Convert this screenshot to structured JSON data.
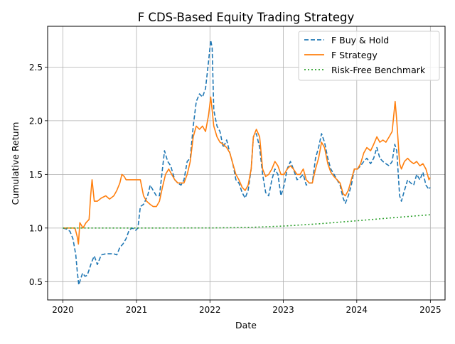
{
  "chart_data": {
    "type": "line",
    "title": "F CDS-Based Equity Trading Strategy",
    "xlabel": "Date",
    "ylabel": "Cumulative Return",
    "xlim": [
      "2019-10-17",
      "2025-03-15"
    ],
    "ylim": [
      0.33,
      2.88
    ],
    "x_ticks": [
      "2020",
      "2021",
      "2022",
      "2023",
      "2024",
      "2025"
    ],
    "y_ticks": [
      "0.5",
      "1.0",
      "1.5",
      "2.0",
      "2.5"
    ],
    "grid": true,
    "legend_position": "top-right",
    "series": [
      {
        "name": "F Buy & Hold",
        "color": "#1f77b4",
        "style": "dashed",
        "points": [
          [
            "2020-01-01",
            1.0
          ],
          [
            "2020-01-20",
            0.99
          ],
          [
            "2020-02-05",
            0.97
          ],
          [
            "2020-02-20",
            0.9
          ],
          [
            "2020-03-05",
            0.75
          ],
          [
            "2020-03-12",
            0.6
          ],
          [
            "2020-03-20",
            0.47
          ],
          [
            "2020-03-28",
            0.52
          ],
          [
            "2020-04-08",
            0.58
          ],
          [
            "2020-04-20",
            0.55
          ],
          [
            "2020-05-01",
            0.56
          ],
          [
            "2020-05-12",
            0.62
          ],
          [
            "2020-05-22",
            0.68
          ],
          [
            "2020-06-05",
            0.74
          ],
          [
            "2020-06-20",
            0.66
          ],
          [
            "2020-07-10",
            0.75
          ],
          [
            "2020-08-01",
            0.76
          ],
          [
            "2020-08-20",
            0.76
          ],
          [
            "2020-09-10",
            0.76
          ],
          [
            "2020-09-25",
            0.75
          ],
          [
            "2020-10-10",
            0.82
          ],
          [
            "2020-10-25",
            0.85
          ],
          [
            "2020-11-10",
            0.9
          ],
          [
            "2020-11-25",
            0.98
          ],
          [
            "2020-12-10",
            1.0
          ],
          [
            "2020-12-28",
            0.98
          ],
          [
            "2021-01-08",
            1.0
          ],
          [
            "2021-01-20",
            1.2
          ],
          [
            "2021-02-05",
            1.22
          ],
          [
            "2021-02-25",
            1.3
          ],
          [
            "2021-03-10",
            1.4
          ],
          [
            "2021-03-25",
            1.35
          ],
          [
            "2021-04-10",
            1.3
          ],
          [
            "2021-04-25",
            1.3
          ],
          [
            "2021-05-10",
            1.55
          ],
          [
            "2021-05-20",
            1.72
          ],
          [
            "2021-06-05",
            1.62
          ],
          [
            "2021-06-20",
            1.58
          ],
          [
            "2021-07-10",
            1.45
          ],
          [
            "2021-07-25",
            1.42
          ],
          [
            "2021-08-10",
            1.4
          ],
          [
            "2021-08-25",
            1.45
          ],
          [
            "2021-09-10",
            1.62
          ],
          [
            "2021-09-25",
            1.65
          ],
          [
            "2021-10-10",
            1.95
          ],
          [
            "2021-10-25",
            2.18
          ],
          [
            "2021-11-10",
            2.25
          ],
          [
            "2021-11-25",
            2.22
          ],
          [
            "2021-12-10",
            2.3
          ],
          [
            "2021-12-25",
            2.55
          ],
          [
            "2022-01-05",
            2.75
          ],
          [
            "2022-01-12",
            2.68
          ],
          [
            "2022-01-20",
            2.1
          ],
          [
            "2022-02-05",
            1.95
          ],
          [
            "2022-02-20",
            1.9
          ],
          [
            "2022-03-08",
            1.75
          ],
          [
            "2022-03-25",
            1.82
          ],
          [
            "2022-04-10",
            1.7
          ],
          [
            "2022-04-25",
            1.6
          ],
          [
            "2022-05-10",
            1.45
          ],
          [
            "2022-05-25",
            1.42
          ],
          [
            "2022-06-10",
            1.33
          ],
          [
            "2022-06-25",
            1.28
          ],
          [
            "2022-07-10",
            1.35
          ],
          [
            "2022-07-25",
            1.55
          ],
          [
            "2022-08-05",
            1.85
          ],
          [
            "2022-08-20",
            1.88
          ],
          [
            "2022-09-05",
            1.75
          ],
          [
            "2022-09-20",
            1.5
          ],
          [
            "2022-10-05",
            1.33
          ],
          [
            "2022-10-20",
            1.3
          ],
          [
            "2022-11-05",
            1.45
          ],
          [
            "2022-11-20",
            1.55
          ],
          [
            "2022-12-05",
            1.5
          ],
          [
            "2022-12-20",
            1.3
          ],
          [
            "2023-01-05",
            1.4
          ],
          [
            "2023-01-20",
            1.55
          ],
          [
            "2023-02-05",
            1.62
          ],
          [
            "2023-02-20",
            1.55
          ],
          [
            "2023-03-10",
            1.45
          ],
          [
            "2023-03-25",
            1.47
          ],
          [
            "2023-04-10",
            1.5
          ],
          [
            "2023-04-25",
            1.4
          ],
          [
            "2023-05-10",
            1.42
          ],
          [
            "2023-05-25",
            1.42
          ],
          [
            "2023-06-10",
            1.65
          ],
          [
            "2023-06-25",
            1.75
          ],
          [
            "2023-07-10",
            1.88
          ],
          [
            "2023-07-25",
            1.8
          ],
          [
            "2023-08-10",
            1.65
          ],
          [
            "2023-08-25",
            1.55
          ],
          [
            "2023-09-10",
            1.5
          ],
          [
            "2023-09-25",
            1.45
          ],
          [
            "2023-10-10",
            1.4
          ],
          [
            "2023-10-25",
            1.28
          ],
          [
            "2023-11-05",
            1.23
          ],
          [
            "2023-11-20",
            1.3
          ],
          [
            "2023-12-05",
            1.4
          ],
          [
            "2023-12-20",
            1.55
          ],
          [
            "2024-01-05",
            1.55
          ],
          [
            "2024-01-20",
            1.58
          ],
          [
            "2024-02-05",
            1.62
          ],
          [
            "2024-02-20",
            1.65
          ],
          [
            "2024-03-10",
            1.6
          ],
          [
            "2024-03-25",
            1.65
          ],
          [
            "2024-04-10",
            1.75
          ],
          [
            "2024-04-25",
            1.65
          ],
          [
            "2024-05-10",
            1.62
          ],
          [
            "2024-05-25",
            1.6
          ],
          [
            "2024-06-10",
            1.58
          ],
          [
            "2024-06-25",
            1.62
          ],
          [
            "2024-07-08",
            1.78
          ],
          [
            "2024-07-18",
            1.72
          ],
          [
            "2024-08-01",
            1.3
          ],
          [
            "2024-08-10",
            1.25
          ],
          [
            "2024-08-25",
            1.35
          ],
          [
            "2024-09-10",
            1.45
          ],
          [
            "2024-09-25",
            1.42
          ],
          [
            "2024-10-10",
            1.4
          ],
          [
            "2024-10-25",
            1.5
          ],
          [
            "2024-11-10",
            1.45
          ],
          [
            "2024-11-25",
            1.52
          ],
          [
            "2024-12-10",
            1.4
          ],
          [
            "2024-12-25",
            1.36
          ],
          [
            "2024-12-31",
            1.38
          ]
        ]
      },
      {
        "name": "F Strategy",
        "color": "#ff7f0e",
        "style": "solid",
        "points": [
          [
            "2020-01-01",
            1.0
          ],
          [
            "2020-02-01",
            1.0
          ],
          [
            "2020-03-01",
            1.0
          ],
          [
            "2020-03-12",
            0.92
          ],
          [
            "2020-03-18",
            0.85
          ],
          [
            "2020-03-25",
            1.05
          ],
          [
            "2020-04-10",
            1.0
          ],
          [
            "2020-04-25",
            1.05
          ],
          [
            "2020-05-10",
            1.08
          ],
          [
            "2020-05-18",
            1.3
          ],
          [
            "2020-05-25",
            1.45
          ],
          [
            "2020-06-05",
            1.25
          ],
          [
            "2020-06-20",
            1.25
          ],
          [
            "2020-07-10",
            1.28
          ],
          [
            "2020-08-01",
            1.3
          ],
          [
            "2020-08-20",
            1.27
          ],
          [
            "2020-09-10",
            1.3
          ],
          [
            "2020-09-25",
            1.35
          ],
          [
            "2020-10-10",
            1.42
          ],
          [
            "2020-10-20",
            1.5
          ],
          [
            "2020-11-01",
            1.48
          ],
          [
            "2020-11-10",
            1.45
          ],
          [
            "2020-12-01",
            1.45
          ],
          [
            "2020-12-20",
            1.45
          ],
          [
            "2021-01-05",
            1.45
          ],
          [
            "2021-01-20",
            1.45
          ],
          [
            "2021-02-05",
            1.3
          ],
          [
            "2021-02-20",
            1.25
          ],
          [
            "2021-03-10",
            1.22
          ],
          [
            "2021-03-25",
            1.2
          ],
          [
            "2021-04-10",
            1.2
          ],
          [
            "2021-04-25",
            1.25
          ],
          [
            "2021-05-10",
            1.38
          ],
          [
            "2021-05-25",
            1.5
          ],
          [
            "2021-06-10",
            1.55
          ],
          [
            "2021-06-25",
            1.5
          ],
          [
            "2021-07-10",
            1.45
          ],
          [
            "2021-07-25",
            1.42
          ],
          [
            "2021-08-10",
            1.42
          ],
          [
            "2021-08-25",
            1.42
          ],
          [
            "2021-09-10",
            1.5
          ],
          [
            "2021-09-25",
            1.62
          ],
          [
            "2021-10-10",
            1.85
          ],
          [
            "2021-10-25",
            1.95
          ],
          [
            "2021-11-10",
            1.92
          ],
          [
            "2021-11-25",
            1.95
          ],
          [
            "2021-12-10",
            1.9
          ],
          [
            "2021-12-25",
            2.05
          ],
          [
            "2022-01-05",
            2.22
          ],
          [
            "2022-01-12",
            2.1
          ],
          [
            "2022-01-20",
            1.95
          ],
          [
            "2022-02-05",
            1.85
          ],
          [
            "2022-02-20",
            1.8
          ],
          [
            "2022-03-08",
            1.78
          ],
          [
            "2022-03-25",
            1.75
          ],
          [
            "2022-04-10",
            1.7
          ],
          [
            "2022-04-25",
            1.6
          ],
          [
            "2022-05-10",
            1.5
          ],
          [
            "2022-05-25",
            1.45
          ],
          [
            "2022-06-10",
            1.38
          ],
          [
            "2022-06-25",
            1.35
          ],
          [
            "2022-07-10",
            1.4
          ],
          [
            "2022-07-25",
            1.55
          ],
          [
            "2022-08-05",
            1.85
          ],
          [
            "2022-08-20",
            1.92
          ],
          [
            "2022-09-05",
            1.85
          ],
          [
            "2022-09-20",
            1.55
          ],
          [
            "2022-10-05",
            1.48
          ],
          [
            "2022-10-20",
            1.5
          ],
          [
            "2022-11-05",
            1.55
          ],
          [
            "2022-11-20",
            1.62
          ],
          [
            "2022-12-05",
            1.58
          ],
          [
            "2022-12-20",
            1.5
          ],
          [
            "2023-01-05",
            1.5
          ],
          [
            "2023-01-20",
            1.55
          ],
          [
            "2023-02-05",
            1.58
          ],
          [
            "2023-02-20",
            1.55
          ],
          [
            "2023-03-10",
            1.5
          ],
          [
            "2023-03-25",
            1.5
          ],
          [
            "2023-04-10",
            1.55
          ],
          [
            "2023-04-25",
            1.45
          ],
          [
            "2023-05-10",
            1.42
          ],
          [
            "2023-05-25",
            1.42
          ],
          [
            "2023-06-10",
            1.55
          ],
          [
            "2023-06-25",
            1.65
          ],
          [
            "2023-07-10",
            1.8
          ],
          [
            "2023-07-25",
            1.75
          ],
          [
            "2023-08-10",
            1.6
          ],
          [
            "2023-08-25",
            1.52
          ],
          [
            "2023-09-10",
            1.48
          ],
          [
            "2023-09-25",
            1.45
          ],
          [
            "2023-10-10",
            1.42
          ],
          [
            "2023-10-25",
            1.32
          ],
          [
            "2023-11-05",
            1.3
          ],
          [
            "2023-11-20",
            1.35
          ],
          [
            "2023-12-05",
            1.45
          ],
          [
            "2023-12-20",
            1.55
          ],
          [
            "2024-01-05",
            1.55
          ],
          [
            "2024-01-20",
            1.6
          ],
          [
            "2024-02-05",
            1.7
          ],
          [
            "2024-02-20",
            1.75
          ],
          [
            "2024-03-10",
            1.72
          ],
          [
            "2024-03-25",
            1.78
          ],
          [
            "2024-04-10",
            1.85
          ],
          [
            "2024-04-25",
            1.8
          ],
          [
            "2024-05-10",
            1.82
          ],
          [
            "2024-05-25",
            1.8
          ],
          [
            "2024-06-10",
            1.85
          ],
          [
            "2024-06-25",
            1.9
          ],
          [
            "2024-07-10",
            2.18
          ],
          [
            "2024-07-18",
            2.0
          ],
          [
            "2024-08-01",
            1.6
          ],
          [
            "2024-08-10",
            1.55
          ],
          [
            "2024-08-25",
            1.62
          ],
          [
            "2024-09-10",
            1.65
          ],
          [
            "2024-09-25",
            1.62
          ],
          [
            "2024-10-10",
            1.6
          ],
          [
            "2024-10-25",
            1.62
          ],
          [
            "2024-11-10",
            1.58
          ],
          [
            "2024-11-25",
            1.6
          ],
          [
            "2024-12-10",
            1.55
          ],
          [
            "2024-12-25",
            1.45
          ],
          [
            "2024-12-31",
            1.47
          ]
        ]
      },
      {
        "name": "Risk-Free Benchmark",
        "color": "#2ca02c",
        "style": "dotted",
        "points": [
          [
            "2020-01-01",
            1.0
          ],
          [
            "2021-01-01",
            1.0
          ],
          [
            "2022-01-01",
            1.001
          ],
          [
            "2022-07-01",
            1.005
          ],
          [
            "2023-01-01",
            1.018
          ],
          [
            "2023-07-01",
            1.04
          ],
          [
            "2024-01-01",
            1.068
          ],
          [
            "2024-07-01",
            1.096
          ],
          [
            "2024-12-31",
            1.124
          ]
        ]
      }
    ]
  }
}
